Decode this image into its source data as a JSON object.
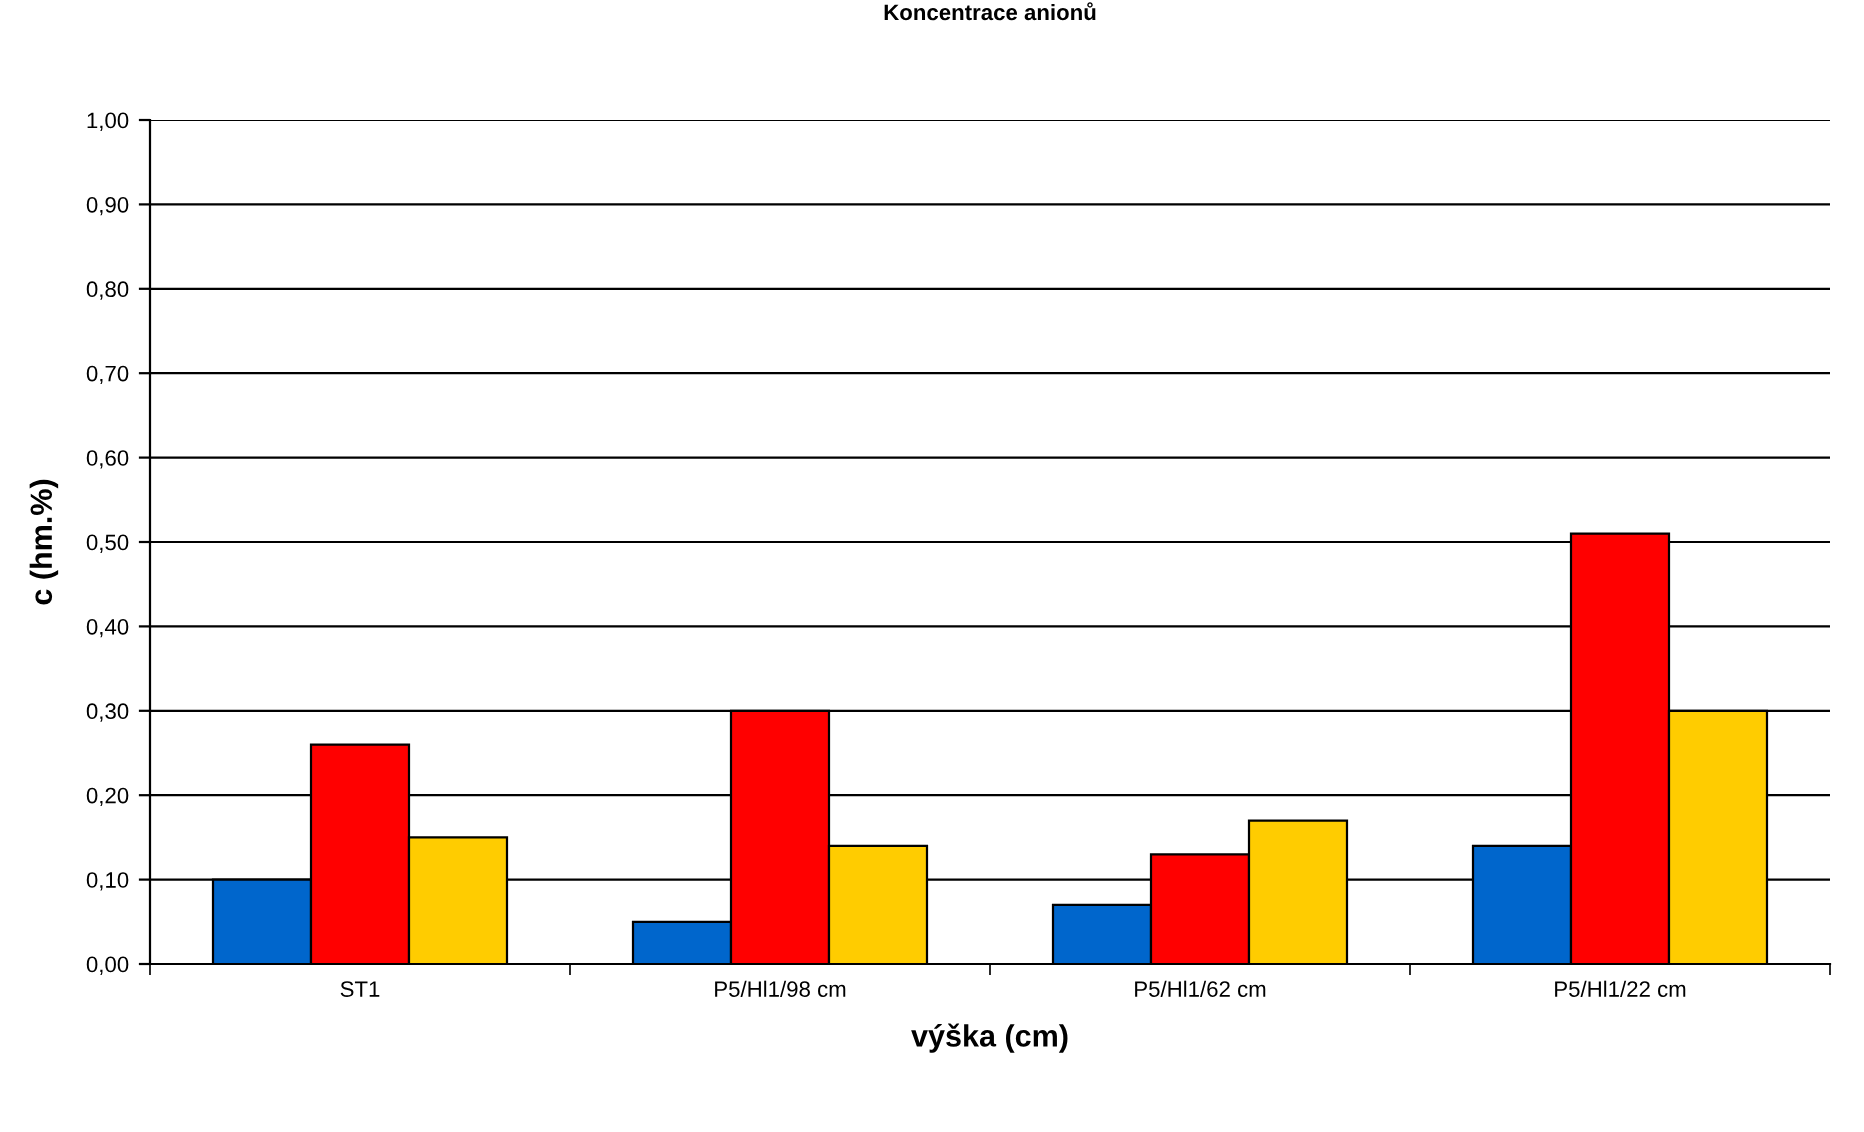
{
  "chart_data": {
    "type": "bar",
    "title": "Koncentrace anionů",
    "xlabel": "výška (cm)",
    "ylabel": "c (hm.%)",
    "categories": [
      "ST1",
      "P5/Hl1/98 cm",
      "P5/Hl1/62 cm",
      "P5/Hl1/22 cm"
    ],
    "series": [
      {
        "color": "#0066cc",
        "values": [
          0.1,
          0.05,
          0.07,
          0.14
        ]
      },
      {
        "color": "#ff0000",
        "values": [
          0.26,
          0.3,
          0.13,
          0.51
        ]
      },
      {
        "color": "#ffcc00",
        "values": [
          0.15,
          0.14,
          0.17,
          0.3
        ]
      }
    ],
    "ylim": [
      0,
      1
    ],
    "yticks": [
      {
        "value": 0,
        "label": "0,00"
      },
      {
        "value": 0.1,
        "label": "0,10"
      },
      {
        "value": 0.2,
        "label": "0,20"
      },
      {
        "value": 0.3,
        "label": "0,30"
      },
      {
        "value": 0.4,
        "label": "0,40"
      },
      {
        "value": 0.5,
        "label": "0,50"
      },
      {
        "value": 0.6,
        "label": "0,60"
      },
      {
        "value": 0.7,
        "label": "0,70"
      },
      {
        "value": 0.8,
        "label": "0,80"
      },
      {
        "value": 0.9,
        "label": "0,90"
      },
      {
        "value": 1,
        "label": "1,00"
      }
    ],
    "grid": "y"
  }
}
